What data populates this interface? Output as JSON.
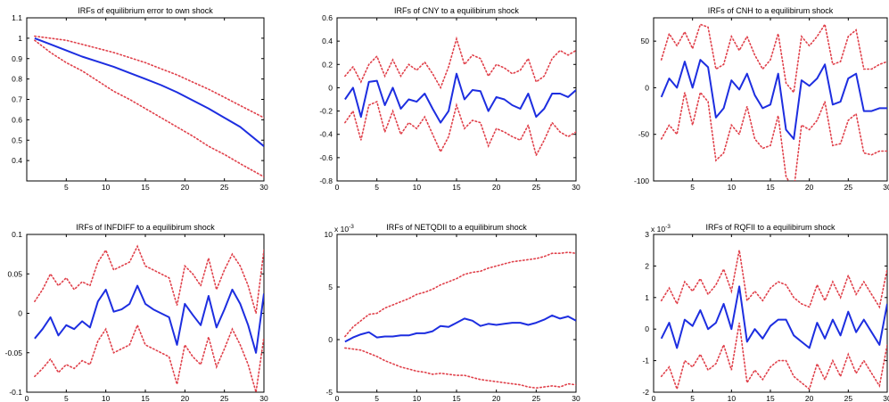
{
  "chart_data": [
    {
      "type": "line",
      "title": "IRFs of equilibrium error to own shock",
      "xlim": [
        0,
        30
      ],
      "ylim": [
        0.3,
        1.1
      ],
      "xticks": [
        5,
        10,
        15,
        20,
        25,
        30
      ],
      "yticks": [
        0.4,
        0.5,
        0.6,
        0.7,
        0.8,
        0.9,
        1
      ],
      "ytick_labels": [
        "0.4",
        "0.5",
        "0.6",
        "0.7",
        "0.8",
        "0.9",
        "1"
      ],
      "ytick_top_label": "1.1",
      "y_exponent": "",
      "x": [
        1,
        3,
        5,
        7,
        9,
        11,
        13,
        15,
        17,
        19,
        21,
        23,
        25,
        27,
        30
      ],
      "series": [
        {
          "role": "response",
          "values": [
            1.0,
            0.97,
            0.94,
            0.91,
            0.885,
            0.86,
            0.83,
            0.8,
            0.77,
            0.735,
            0.695,
            0.655,
            0.61,
            0.565,
            0.47
          ]
        },
        {
          "role": "upper",
          "values": [
            1.01,
            1.0,
            0.99,
            0.97,
            0.95,
            0.93,
            0.905,
            0.88,
            0.85,
            0.82,
            0.785,
            0.75,
            0.71,
            0.67,
            0.61
          ]
        },
        {
          "role": "lower",
          "values": [
            0.99,
            0.93,
            0.88,
            0.84,
            0.79,
            0.74,
            0.7,
            0.655,
            0.61,
            0.565,
            0.52,
            0.47,
            0.43,
            0.385,
            0.32
          ]
        }
      ]
    },
    {
      "type": "line",
      "title": "IRFs of CNY to a equilibirum shock",
      "xlim": [
        0,
        30
      ],
      "ylim": [
        -0.8,
        0.6
      ],
      "xticks": [
        0,
        5,
        10,
        15,
        20,
        25,
        30
      ],
      "yticks": [
        -0.8,
        -0.6,
        -0.4,
        -0.2,
        0,
        0.2,
        0.4,
        0.6
      ],
      "ytick_labels": [
        "-0.8",
        "-0.6",
        "-0.4",
        "-0.2",
        "0",
        "0.2",
        "0.4",
        "0.6"
      ],
      "y_exponent": "",
      "x": [
        1,
        2,
        3,
        4,
        5,
        6,
        7,
        8,
        9,
        10,
        11,
        12,
        13,
        14,
        15,
        16,
        17,
        18,
        19,
        20,
        21,
        22,
        23,
        24,
        25,
        26,
        27,
        28,
        29,
        30
      ],
      "series": [
        {
          "role": "response",
          "values": [
            -0.1,
            0.0,
            -0.25,
            0.05,
            0.06,
            -0.15,
            0.0,
            -0.18,
            -0.1,
            -0.12,
            -0.05,
            -0.18,
            -0.3,
            -0.2,
            0.12,
            -0.1,
            -0.02,
            -0.03,
            -0.2,
            -0.08,
            -0.1,
            -0.15,
            -0.18,
            -0.05,
            -0.25,
            -0.18,
            -0.05,
            -0.05,
            -0.08,
            -0.02
          ]
        },
        {
          "role": "upper",
          "values": [
            0.1,
            0.18,
            0.05,
            0.2,
            0.27,
            0.1,
            0.24,
            0.1,
            0.2,
            0.15,
            0.22,
            0.12,
            0.0,
            0.18,
            0.42,
            0.2,
            0.28,
            0.25,
            0.1,
            0.2,
            0.17,
            0.12,
            0.15,
            0.25,
            0.05,
            0.1,
            0.25,
            0.32,
            0.28,
            0.32
          ]
        },
        {
          "role": "lower",
          "values": [
            -0.3,
            -0.2,
            -0.45,
            -0.15,
            -0.12,
            -0.38,
            -0.2,
            -0.4,
            -0.3,
            -0.35,
            -0.25,
            -0.4,
            -0.55,
            -0.42,
            -0.15,
            -0.35,
            -0.28,
            -0.3,
            -0.5,
            -0.35,
            -0.38,
            -0.42,
            -0.45,
            -0.32,
            -0.58,
            -0.45,
            -0.3,
            -0.38,
            -0.42,
            -0.38
          ]
        }
      ]
    },
    {
      "type": "line",
      "title": "IRFs of CNH to a equilibirum shock",
      "xlim": [
        0,
        30
      ],
      "ylim": [
        -100,
        75
      ],
      "xticks": [
        5,
        10,
        15,
        20,
        25,
        30
      ],
      "yticks": [
        -100,
        -50,
        0,
        50
      ],
      "ytick_labels": [
        "-100",
        "-50",
        "0",
        "50"
      ],
      "y_exponent": "",
      "x": [
        1,
        2,
        3,
        4,
        5,
        6,
        7,
        8,
        9,
        10,
        11,
        12,
        13,
        14,
        15,
        16,
        17,
        18,
        19,
        20,
        21,
        22,
        23,
        24,
        25,
        26,
        27,
        28,
        29,
        30
      ],
      "series": [
        {
          "role": "response",
          "values": [
            -10,
            10,
            0,
            28,
            0,
            30,
            22,
            -32,
            -22,
            8,
            -2,
            15,
            -8,
            -22,
            -18,
            15,
            -45,
            -55,
            8,
            2,
            10,
            25,
            -18,
            -15,
            10,
            15,
            -25,
            -25,
            -22,
            -22
          ]
        },
        {
          "role": "upper",
          "values": [
            30,
            58,
            45,
            60,
            42,
            68,
            65,
            20,
            25,
            55,
            40,
            55,
            35,
            20,
            30,
            58,
            5,
            -5,
            55,
            45,
            55,
            68,
            25,
            28,
            55,
            62,
            20,
            20,
            25,
            28
          ]
        },
        {
          "role": "lower",
          "values": [
            -55,
            -40,
            -50,
            -5,
            -40,
            -5,
            -15,
            -78,
            -70,
            -40,
            -50,
            -20,
            -55,
            -65,
            -62,
            -30,
            -95,
            -110,
            -40,
            -45,
            -35,
            -15,
            -62,
            -60,
            -35,
            -28,
            -70,
            -72,
            -68,
            -68
          ]
        }
      ]
    },
    {
      "type": "line",
      "title": "IRFs of INFDIFF to a equilibirum shock",
      "xlim": [
        0,
        30
      ],
      "ylim": [
        -0.1,
        0.1
      ],
      "xticks": [
        0,
        5,
        10,
        15,
        20,
        25,
        30
      ],
      "yticks": [
        -0.1,
        -0.05,
        0,
        0.05,
        0.1
      ],
      "ytick_labels": [
        "-0.1",
        "-0.05",
        "0",
        "0.05",
        "0.1"
      ],
      "y_exponent": "",
      "x": [
        1,
        2,
        3,
        4,
        5,
        6,
        7,
        8,
        9,
        10,
        11,
        12,
        13,
        14,
        15,
        16,
        17,
        18,
        19,
        20,
        21,
        22,
        23,
        24,
        25,
        26,
        27,
        28,
        29,
        30
      ],
      "series": [
        {
          "role": "response",
          "values": [
            -0.032,
            -0.02,
            -0.005,
            -0.028,
            -0.015,
            -0.02,
            -0.01,
            -0.018,
            0.015,
            0.03,
            0.002,
            0.005,
            0.012,
            0.035,
            0.012,
            0.005,
            0.0,
            -0.005,
            -0.04,
            0.012,
            -0.002,
            -0.015,
            0.022,
            -0.018,
            0.005,
            0.03,
            0.012,
            -0.015,
            -0.05,
            0.025
          ]
        },
        {
          "role": "upper",
          "values": [
            0.015,
            0.03,
            0.05,
            0.035,
            0.045,
            0.03,
            0.04,
            0.035,
            0.065,
            0.08,
            0.055,
            0.06,
            0.065,
            0.085,
            0.06,
            0.055,
            0.05,
            0.045,
            0.01,
            0.06,
            0.05,
            0.035,
            0.07,
            0.03,
            0.055,
            0.075,
            0.06,
            0.035,
            0.0,
            0.08
          ]
        },
        {
          "role": "lower",
          "values": [
            -0.08,
            -0.07,
            -0.058,
            -0.075,
            -0.065,
            -0.07,
            -0.06,
            -0.065,
            -0.035,
            -0.02,
            -0.05,
            -0.045,
            -0.04,
            -0.015,
            -0.04,
            -0.045,
            -0.05,
            -0.055,
            -0.09,
            -0.04,
            -0.055,
            -0.065,
            -0.03,
            -0.068,
            -0.045,
            -0.02,
            -0.04,
            -0.065,
            -0.1,
            -0.03
          ]
        }
      ]
    },
    {
      "type": "line",
      "title": "IRFs of NETQDII to a equilibirum shock",
      "xlim": [
        0,
        30
      ],
      "ylim": [
        -5,
        10
      ],
      "xticks": [
        0,
        5,
        10,
        15,
        20,
        25,
        30
      ],
      "yticks": [
        -5,
        0,
        5,
        10
      ],
      "ytick_labels": [
        "-5",
        "0",
        "5",
        "10"
      ],
      "y_exponent": "x 10-3",
      "x": [
        1,
        2,
        3,
        4,
        5,
        6,
        7,
        8,
        9,
        10,
        11,
        12,
        13,
        14,
        15,
        16,
        17,
        18,
        19,
        20,
        21,
        22,
        23,
        24,
        25,
        26,
        27,
        28,
        29,
        30
      ],
      "series": [
        {
          "role": "response",
          "values": [
            -0.2,
            0.2,
            0.5,
            0.7,
            0.2,
            0.3,
            0.3,
            0.4,
            0.4,
            0.6,
            0.6,
            0.8,
            1.3,
            1.2,
            1.6,
            2.0,
            1.8,
            1.3,
            1.5,
            1.4,
            1.5,
            1.6,
            1.6,
            1.4,
            1.6,
            1.9,
            2.3,
            2.0,
            2.2,
            1.8
          ]
        },
        {
          "role": "upper",
          "values": [
            0.3,
            1.2,
            1.8,
            2.4,
            2.5,
            3.0,
            3.3,
            3.6,
            3.9,
            4.3,
            4.5,
            4.8,
            5.2,
            5.5,
            5.8,
            6.2,
            6.4,
            6.5,
            6.8,
            7.0,
            7.2,
            7.4,
            7.5,
            7.6,
            7.7,
            7.9,
            8.2,
            8.2,
            8.3,
            8.2
          ]
        },
        {
          "role": "lower",
          "values": [
            -0.8,
            -0.9,
            -1.0,
            -1.3,
            -1.6,
            -2.0,
            -2.3,
            -2.6,
            -2.8,
            -3.0,
            -3.1,
            -3.3,
            -3.2,
            -3.3,
            -3.4,
            -3.4,
            -3.6,
            -3.8,
            -3.9,
            -4.0,
            -4.1,
            -4.2,
            -4.3,
            -4.5,
            -4.6,
            -4.5,
            -4.4,
            -4.5,
            -4.2,
            -4.3
          ]
        }
      ]
    },
    {
      "type": "line",
      "title": "IRFs of RQFII to a equilibirum shock",
      "xlim": [
        0,
        30
      ],
      "ylim": [
        -2,
        3
      ],
      "xticks": [
        0,
        5,
        10,
        15,
        20,
        25,
        30
      ],
      "yticks": [
        -2,
        -1,
        0,
        1,
        2,
        3
      ],
      "ytick_labels": [
        "-2",
        "-1",
        "0",
        "1",
        "2",
        "3"
      ],
      "y_exponent": "x 10-3",
      "x": [
        1,
        2,
        3,
        4,
        5,
        6,
        7,
        8,
        9,
        10,
        11,
        12,
        13,
        14,
        15,
        16,
        17,
        18,
        19,
        20,
        21,
        22,
        23,
        24,
        25,
        26,
        27,
        28,
        29,
        30
      ],
      "series": [
        {
          "role": "response",
          "values": [
            -0.3,
            0.2,
            -0.6,
            0.3,
            0.1,
            0.6,
            0.0,
            0.2,
            0.8,
            0.0,
            1.35,
            -0.4,
            0.0,
            -0.3,
            0.1,
            0.3,
            0.3,
            -0.2,
            -0.4,
            -0.6,
            0.2,
            -0.3,
            0.3,
            -0.2,
            0.55,
            -0.1,
            0.3,
            -0.1,
            -0.5,
            0.8
          ]
        },
        {
          "role": "upper",
          "values": [
            0.9,
            1.3,
            0.8,
            1.5,
            1.2,
            1.6,
            1.1,
            1.4,
            1.9,
            1.2,
            2.5,
            0.9,
            1.2,
            0.9,
            1.3,
            1.5,
            1.4,
            1.0,
            0.8,
            0.7,
            1.4,
            0.9,
            1.5,
            1.0,
            1.7,
            1.1,
            1.5,
            1.1,
            0.7,
            1.9
          ]
        },
        {
          "role": "lower",
          "values": [
            -1.5,
            -1.2,
            -1.9,
            -1.0,
            -1.2,
            -0.8,
            -1.3,
            -1.1,
            -0.5,
            -1.3,
            0.2,
            -1.7,
            -1.3,
            -1.6,
            -1.2,
            -1.0,
            -1.0,
            -1.5,
            -1.7,
            -1.9,
            -1.1,
            -1.6,
            -1.0,
            -1.5,
            -0.8,
            -1.4,
            -1.0,
            -1.4,
            -1.8,
            -0.5
          ]
        }
      ]
    }
  ]
}
